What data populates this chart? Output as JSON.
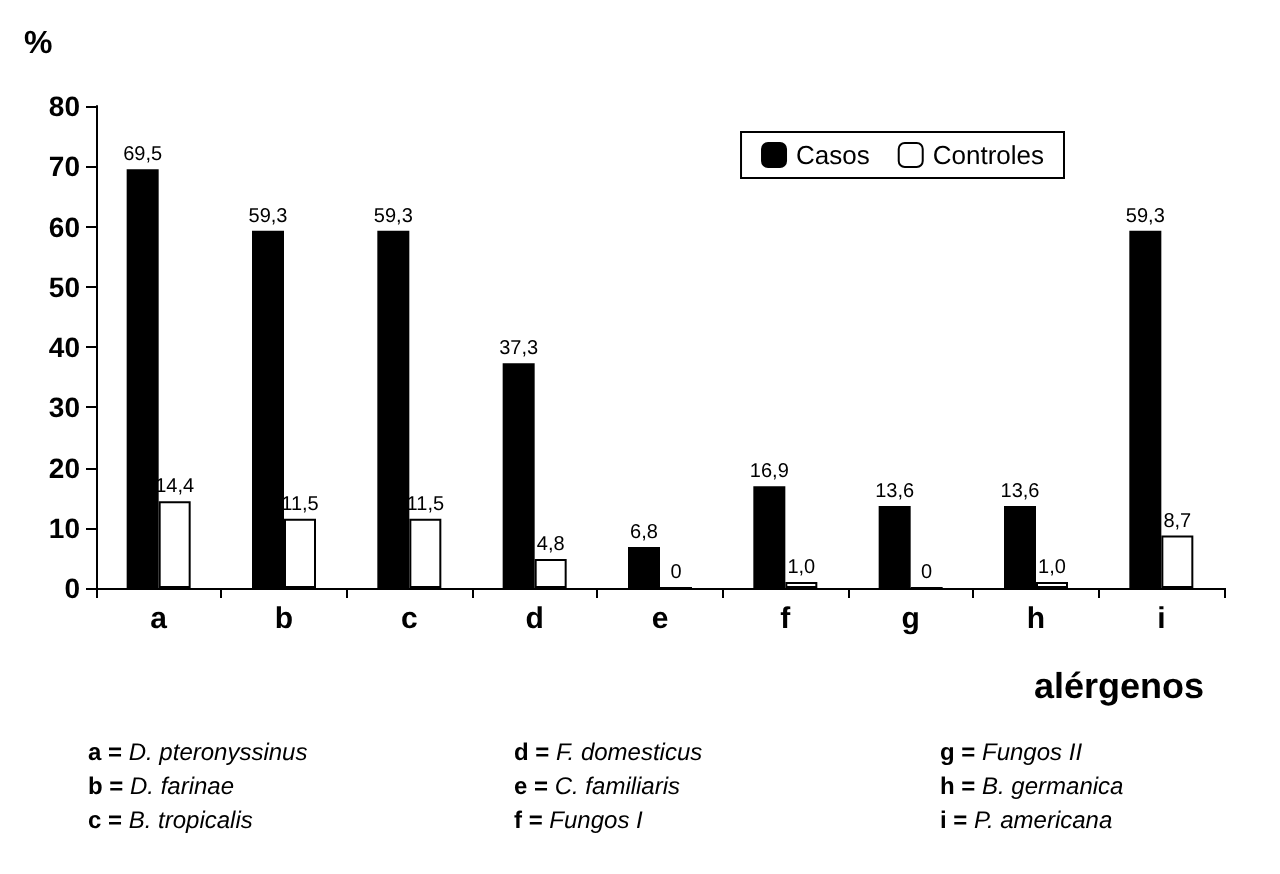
{
  "chart_data": {
    "type": "bar",
    "ylabel": "%",
    "xlabel": "alérgenos",
    "categories": [
      "a",
      "b",
      "c",
      "d",
      "e",
      "f",
      "g",
      "h",
      "i"
    ],
    "series": [
      {
        "name": "Casos",
        "color": "#000000",
        "values": [
          69.5,
          59.3,
          59.3,
          37.3,
          6.8,
          16.9,
          13.6,
          13.6,
          59.3
        ],
        "value_labels": [
          "69,5",
          "59,3",
          "59,3",
          "37,3",
          "6,8",
          "16,9",
          "13,6",
          "13,6",
          "59,3"
        ]
      },
      {
        "name": "Controles",
        "color": "#ffffff",
        "values": [
          14.4,
          11.5,
          11.5,
          4.8,
          0,
          1.0,
          0,
          1.0,
          8.7
        ],
        "value_labels": [
          "14,4",
          "11,5",
          "11,5",
          "4,8",
          "0",
          "1,0",
          "0",
          "1,0",
          "8,7"
        ]
      }
    ],
    "ylim": [
      0,
      80
    ],
    "yticks": [
      0,
      10,
      20,
      30,
      40,
      50,
      60,
      70,
      80
    ],
    "grid": false,
    "legend": "top right",
    "annotations": [
      "a = D. pteronyssinus",
      "b = D. farinae",
      "c = B. tropicalis",
      "d = F. domesticus",
      "e = C. familiaris",
      "f = Fungos I",
      "g = Fungos II",
      "h = B. germanica",
      "i = P. americana"
    ]
  }
}
